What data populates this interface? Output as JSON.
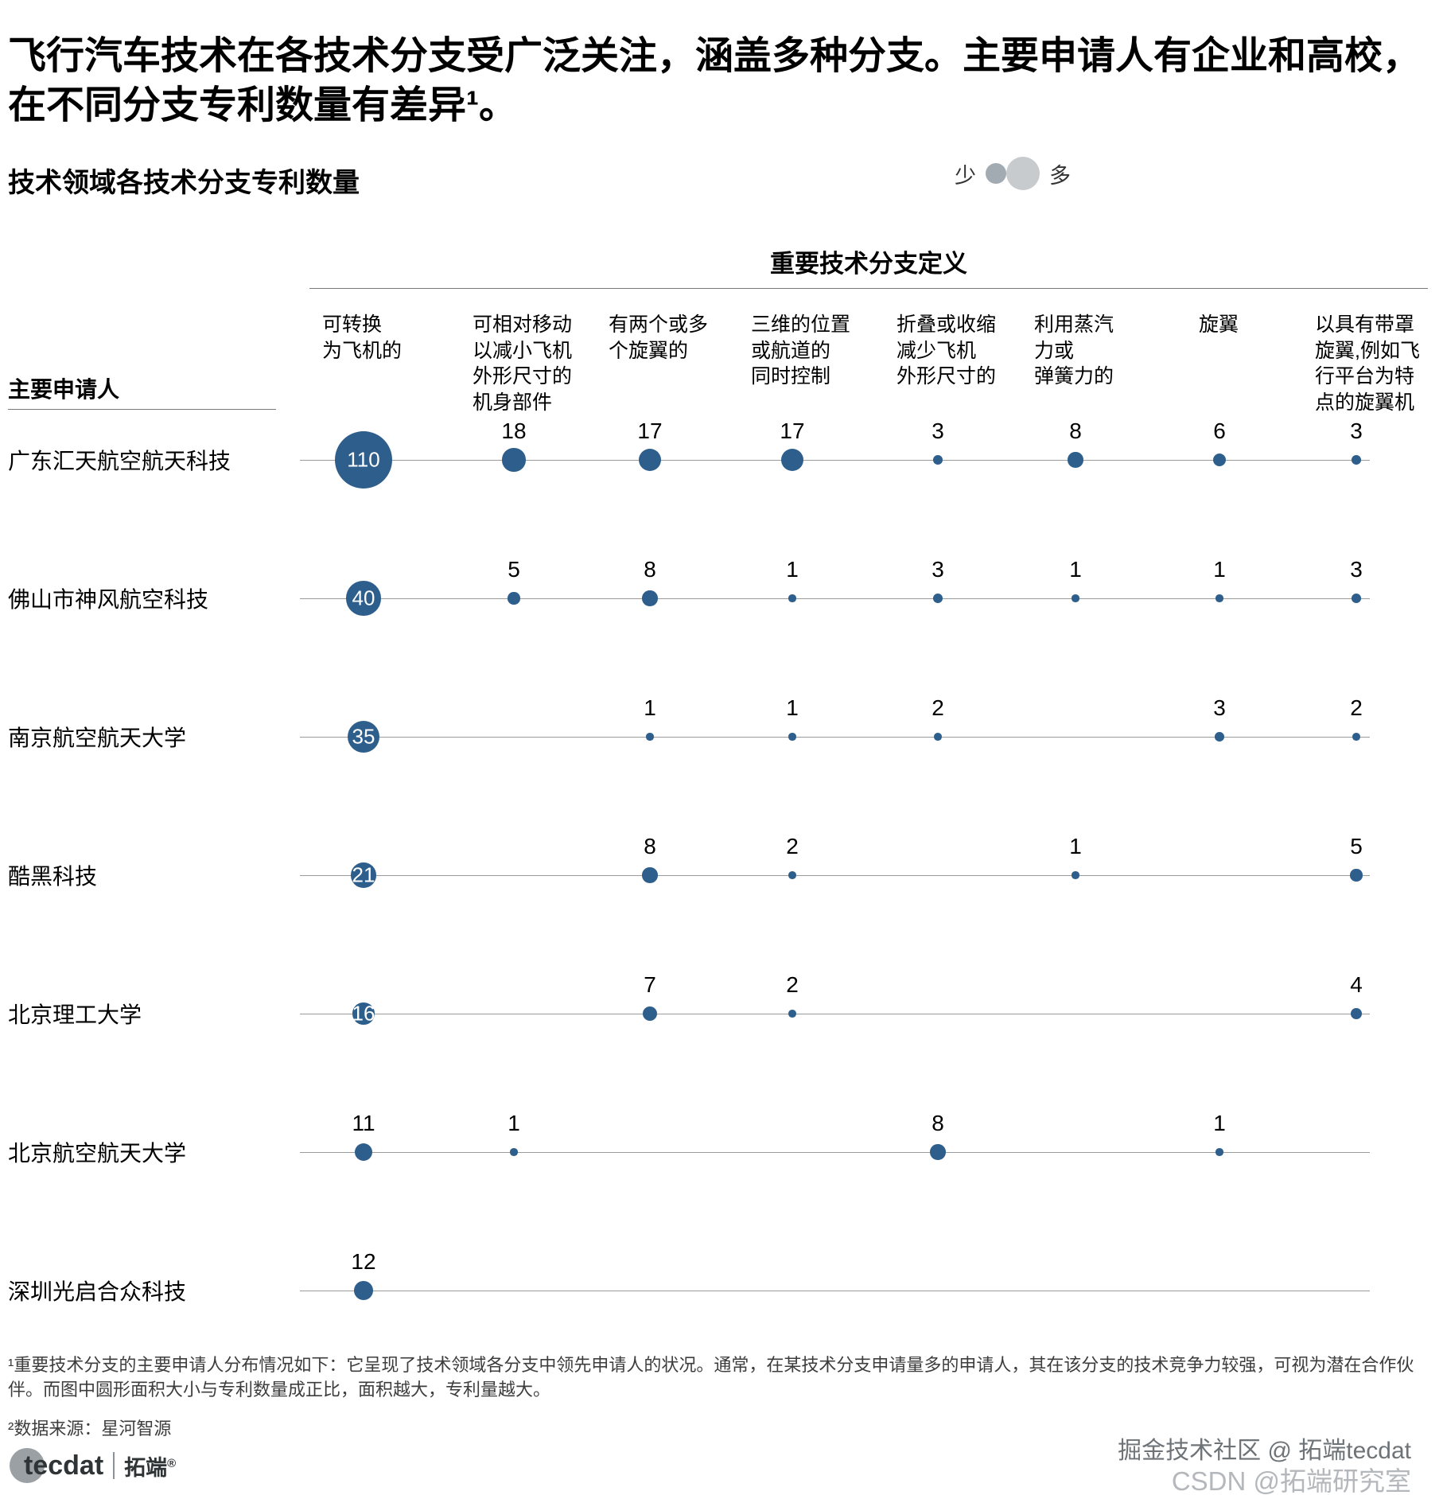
{
  "title": "飞行汽车技术在各技术分支受广泛关注，涵盖多种分支。主要申请人有企业和高校，在不同分支专利数量有差异¹。",
  "subtitle": "技术领域各技术分支专利数量",
  "legend": {
    "few_label": "少",
    "many_label": "多"
  },
  "columns_group_title": "重要技术分支定义",
  "applicants_header": "主要申请人",
  "chart_data": {
    "type": "bubble-matrix",
    "bubble_color": "#2e5f8c",
    "size_rule": "circle area proportional to value",
    "columns": [
      "可转换\n为飞机的",
      "可相对移动\n以减小飞机\n外形尺寸的\n机身部件",
      "有两个或多\n个旋翼的",
      "三维的位置\n或航道的\n同时控制",
      "折叠或收缩\n减少飞机\n外形尺寸的",
      "利用蒸汽\n力或\n弹簧力的",
      "旋翼",
      "以具有带罩\n旋翼,例如飞\n行平台为特\n点的旋翼机"
    ],
    "rows": [
      {
        "name": "广东汇天航空航天科技",
        "values": [
          110,
          18,
          17,
          17,
          3,
          8,
          6,
          3
        ]
      },
      {
        "name": "佛山市神风航空科技",
        "values": [
          40,
          5,
          8,
          1,
          3,
          1,
          1,
          3
        ]
      },
      {
        "name": "南京航空航天大学",
        "values": [
          35,
          null,
          1,
          1,
          2,
          null,
          3,
          2
        ]
      },
      {
        "name": "酷黑科技",
        "values": [
          21,
          null,
          8,
          2,
          null,
          1,
          null,
          5
        ]
      },
      {
        "name": "北京理工大学",
        "values": [
          16,
          null,
          7,
          2,
          null,
          null,
          null,
          4
        ]
      },
      {
        "name": "北京航空航天大学",
        "values": [
          11,
          1,
          null,
          null,
          8,
          null,
          1,
          null
        ]
      },
      {
        "name": "深圳光启合众科技",
        "values": [
          12,
          null,
          null,
          null,
          null,
          null,
          null,
          null
        ]
      }
    ]
  },
  "footnotes": {
    "note1": "¹重要技术分支的主要申请人分布情况如下：它呈现了技术领域各分支中领先申请人的状况。通常，在某技术分支申请量多的申请人，其在该分支的技术竞争力较强，可视为潜在合作伙伴。而图中圆形面积大小与专利数量成正比，面积越大，专利量越大。",
    "note2": "²数据来源：星河智源"
  },
  "footer": {
    "logo_text": "tecdat",
    "logo_cn": "拓端",
    "logo_reg": "®",
    "watermark_line1": "掘金技术社区 @ 拓端tecdat",
    "watermark_line2": "CSDN @拓端研究室"
  }
}
